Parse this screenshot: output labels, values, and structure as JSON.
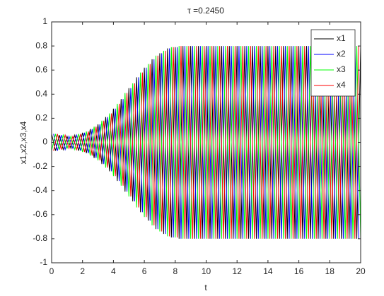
{
  "chart_data": {
    "type": "line",
    "title": "τ =0.2450",
    "xlabel": "t",
    "ylabel": "x1,x2,x3,x4",
    "xlim": [
      0,
      20
    ],
    "ylim": [
      -1,
      1
    ],
    "xticks": [
      0,
      2,
      4,
      6,
      8,
      10,
      12,
      14,
      16,
      18,
      20
    ],
    "yticks": [
      -1,
      -0.8,
      -0.6,
      -0.4,
      -0.2,
      0,
      0.2,
      0.4,
      0.6,
      0.8,
      1
    ],
    "grid": false,
    "legend": "upper-right",
    "series": [
      {
        "name": "x1",
        "color": "#000000",
        "x": [
          0,
          0.25,
          0.5,
          0.75,
          1,
          1.25,
          1.5,
          1.75,
          2,
          2.25,
          2.5,
          2.75,
          3,
          3.25,
          3.5,
          3.75,
          4,
          4.25,
          4.5,
          4.75,
          5,
          5.25,
          5.5,
          5.75,
          6,
          6.25,
          6.5,
          6.75,
          7,
          7.25,
          7.5,
          7.75,
          8,
          8.25,
          8.5,
          8.75,
          9,
          9.25,
          9.5,
          9.75,
          10,
          10.25,
          10.5,
          10.75,
          11,
          11.25,
          11.5,
          11.75,
          12,
          12.25,
          12.5,
          12.75,
          13,
          13.25,
          13.5,
          13.75,
          14,
          14.25,
          14.5,
          14.75,
          15,
          15.25,
          15.5,
          15.75,
          16,
          16.25,
          16.5,
          16.75,
          17,
          17.25,
          17.5,
          17.75,
          18,
          18.25,
          18.5,
          18.75,
          19,
          19.25,
          19.5,
          19.75,
          20
        ],
        "values": [
          0.07,
          -0.07,
          0.06,
          -0.06,
          0.05,
          -0.05,
          0.06,
          -0.07,
          0.08,
          -0.09,
          0.11,
          -0.13,
          0.15,
          -0.18,
          0.21,
          -0.24,
          0.28,
          -0.32,
          0.36,
          -0.41,
          0.45,
          -0.49,
          0.54,
          -0.58,
          0.62,
          -0.65,
          0.69,
          -0.72,
          0.74,
          -0.76,
          0.78,
          -0.79,
          0.79,
          -0.8,
          0.8,
          -0.8,
          0.8,
          -0.8,
          0.8,
          -0.8,
          0.8,
          -0.8,
          0.8,
          -0.8,
          0.8,
          -0.8,
          0.8,
          -0.8,
          0.8,
          -0.8,
          0.8,
          -0.8,
          0.8,
          -0.8,
          0.8,
          -0.8,
          0.8,
          -0.8,
          0.8,
          -0.8,
          0.8,
          -0.8,
          0.8,
          -0.8,
          0.8,
          -0.8,
          0.8,
          -0.8,
          0.8,
          -0.8,
          0.8,
          -0.8,
          0.8,
          -0.8,
          0.8,
          -0.8,
          0.8,
          -0.8,
          0.8,
          -0.8,
          0.8
        ]
      },
      {
        "name": "x2",
        "color": "#0000ff",
        "x": [
          0.125,
          0.375,
          0.625,
          0.875,
          1.125,
          1.375,
          1.625,
          1.875,
          2.125,
          2.375,
          2.625,
          2.875,
          3.125,
          3.375,
          3.625,
          3.875,
          4.125,
          4.375,
          4.625,
          4.875,
          5.125,
          5.375,
          5.625,
          5.875,
          6.125,
          6.375,
          6.625,
          6.875,
          7.125,
          7.375,
          7.625,
          7.875,
          8.125,
          8.375,
          8.625,
          8.875,
          9.125,
          9.375,
          9.625,
          9.875,
          10.125,
          10.375,
          10.625,
          10.875,
          11.125,
          11.375,
          11.625,
          11.875,
          12.125,
          12.375,
          12.625,
          12.875,
          13.125,
          13.375,
          13.625,
          13.875,
          14.125,
          14.375,
          14.625,
          14.875,
          15.125,
          15.375,
          15.625,
          15.875,
          16.125,
          16.375,
          16.625,
          16.875,
          17.125,
          17.375,
          17.625,
          17.875,
          18.125,
          18.375,
          18.625,
          18.875,
          19.125,
          19.375,
          19.625,
          19.875
        ],
        "values": [
          0.07,
          -0.07,
          0.06,
          -0.06,
          0.05,
          -0.05,
          0.06,
          -0.07,
          0.08,
          -0.09,
          0.11,
          -0.13,
          0.15,
          -0.18,
          0.21,
          -0.24,
          0.28,
          -0.32,
          0.36,
          -0.41,
          0.45,
          -0.49,
          0.54,
          -0.58,
          0.62,
          -0.65,
          0.69,
          -0.72,
          0.74,
          -0.76,
          0.78,
          -0.79,
          0.79,
          -0.8,
          0.8,
          -0.8,
          0.8,
          -0.8,
          0.8,
          -0.8,
          0.8,
          -0.8,
          0.8,
          -0.8,
          0.8,
          -0.8,
          0.8,
          -0.8,
          0.8,
          -0.8,
          0.8,
          -0.8,
          0.8,
          -0.8,
          0.8,
          -0.8,
          0.8,
          -0.8,
          0.8,
          -0.8,
          0.8,
          -0.8,
          0.8,
          -0.8,
          0.8,
          -0.8,
          0.8,
          -0.8,
          0.8,
          -0.8,
          0.8,
          -0.8,
          0.8,
          -0.8,
          0.8,
          -0.8,
          0.8,
          -0.8,
          0.8,
          -0.8
        ]
      },
      {
        "name": "x3",
        "color": "#00ff00",
        "x": [
          0,
          0.25,
          0.5,
          0.75,
          1,
          1.25,
          1.5,
          1.75,
          2,
          2.25,
          2.5,
          2.75,
          3,
          3.25,
          3.5,
          3.75,
          4,
          4.25,
          4.5,
          4.75,
          5,
          5.25,
          5.5,
          5.75,
          6,
          6.25,
          6.5,
          6.75,
          7,
          7.25,
          7.5,
          7.75,
          8,
          8.25,
          8.5,
          8.75,
          9,
          9.25,
          9.5,
          9.75,
          10,
          10.25,
          10.5,
          10.75,
          11,
          11.25,
          11.5,
          11.75,
          12,
          12.25,
          12.5,
          12.75,
          13,
          13.25,
          13.5,
          13.75,
          14,
          14.25,
          14.5,
          14.75,
          15,
          15.25,
          15.5,
          15.75,
          16,
          16.25,
          16.5,
          16.75,
          17,
          17.25,
          17.5,
          17.75,
          18,
          18.25,
          18.5,
          18.75,
          19,
          19.25,
          19.5,
          19.75,
          20
        ],
        "values": [
          -0.07,
          0.07,
          -0.06,
          0.06,
          -0.05,
          0.05,
          -0.06,
          0.07,
          -0.08,
          0.09,
          -0.11,
          0.13,
          -0.15,
          0.18,
          -0.21,
          0.24,
          -0.28,
          0.32,
          -0.36,
          0.41,
          -0.45,
          0.49,
          -0.54,
          0.58,
          -0.62,
          0.65,
          -0.69,
          0.72,
          -0.74,
          0.76,
          -0.78,
          0.79,
          -0.79,
          0.8,
          -0.8,
          0.8,
          -0.8,
          0.8,
          -0.8,
          0.8,
          -0.8,
          0.8,
          -0.8,
          0.8,
          -0.8,
          0.8,
          -0.8,
          0.8,
          -0.8,
          0.8,
          -0.8,
          0.8,
          -0.8,
          0.8,
          -0.8,
          0.8,
          -0.8,
          0.8,
          -0.8,
          0.8,
          -0.8,
          0.8,
          -0.8,
          0.8,
          -0.8,
          0.8,
          -0.8,
          0.8,
          -0.8,
          0.8,
          -0.8,
          0.8,
          -0.8,
          0.8,
          -0.8,
          0.8,
          -0.8,
          0.8,
          -0.8,
          0.8,
          -0.8
        ]
      },
      {
        "name": "x4",
        "color": "#ff0000",
        "x": [
          0.125,
          0.375,
          0.625,
          0.875,
          1.125,
          1.375,
          1.625,
          1.875,
          2.125,
          2.375,
          2.625,
          2.875,
          3.125,
          3.375,
          3.625,
          3.875,
          4.125,
          4.375,
          4.625,
          4.875,
          5.125,
          5.375,
          5.625,
          5.875,
          6.125,
          6.375,
          6.625,
          6.875,
          7.125,
          7.375,
          7.625,
          7.875,
          8.125,
          8.375,
          8.625,
          8.875,
          9.125,
          9.375,
          9.625,
          9.875,
          10.125,
          10.375,
          10.625,
          10.875,
          11.125,
          11.375,
          11.625,
          11.875,
          12.125,
          12.375,
          12.625,
          12.875,
          13.125,
          13.375,
          13.625,
          13.875,
          14.125,
          14.375,
          14.625,
          14.875,
          15.125,
          15.375,
          15.625,
          15.875,
          16.125,
          16.375,
          16.625,
          16.875,
          17.125,
          17.375,
          17.625,
          17.875,
          18.125,
          18.375,
          18.625,
          18.875,
          19.125,
          19.375,
          19.625,
          19.875
        ],
        "values": [
          -0.07,
          0.07,
          -0.06,
          0.06,
          -0.05,
          0.05,
          -0.06,
          0.07,
          -0.08,
          0.09,
          -0.11,
          0.13,
          -0.15,
          0.18,
          -0.21,
          0.24,
          -0.28,
          0.32,
          -0.36,
          0.41,
          -0.45,
          0.49,
          -0.54,
          0.58,
          -0.62,
          0.65,
          -0.69,
          0.72,
          -0.74,
          0.76,
          -0.78,
          0.79,
          -0.79,
          0.8,
          -0.8,
          0.8,
          -0.8,
          0.8,
          -0.8,
          0.8,
          -0.8,
          0.8,
          -0.8,
          0.8,
          -0.8,
          0.8,
          -0.8,
          0.8,
          -0.8,
          0.8,
          -0.8,
          0.8,
          -0.8,
          0.8,
          -0.8,
          0.8,
          -0.8,
          0.8,
          -0.8,
          0.8,
          -0.8,
          0.8,
          -0.8,
          0.8,
          -0.8,
          0.8,
          -0.8,
          0.8,
          -0.8,
          0.8,
          -0.8,
          0.8,
          -0.8,
          0.8,
          -0.8,
          0.8,
          -0.8,
          0.8,
          -0.8,
          0.8
        ]
      }
    ]
  }
}
